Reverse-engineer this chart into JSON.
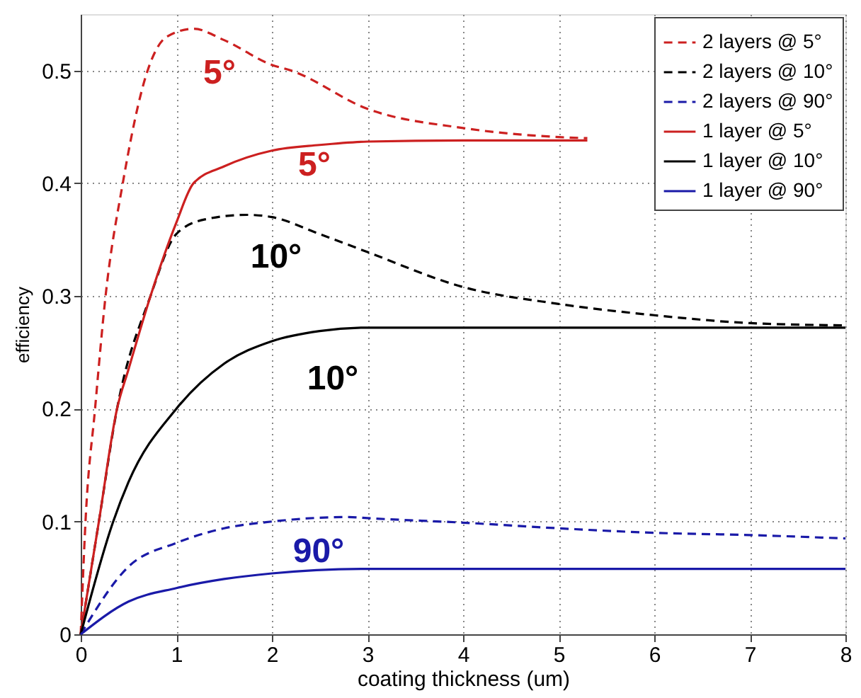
{
  "chart_data": {
    "type": "line",
    "xlabel": "coating thickness (um)",
    "ylabel": "efficiency",
    "xlim": [
      0,
      8
    ],
    "xticks": [
      0,
      1,
      2,
      3,
      4,
      5,
      6,
      7,
      8
    ],
    "ylim": [
      0,
      0.55
    ],
    "yticks": [
      0,
      0.1,
      0.2,
      0.3,
      0.4,
      0.5
    ],
    "grid": true,
    "legend": "top right",
    "marker": "none",
    "series": [
      {
        "name": "2 layers @ 5°",
        "color": "#cc2020",
        "line_style": "dashed",
        "x": [
          0,
          0.05,
          0.15,
          0.26,
          0.44,
          0.7,
          0.9,
          1.18,
          1.5,
          2,
          2.2,
          3,
          4,
          5,
          5.3
        ],
        "values": [
          0,
          0.1,
          0.2,
          0.3,
          0.4,
          0.5,
          0.53,
          0.537,
          0.527,
          0.505,
          0.5,
          0.466,
          0.449,
          0.441,
          0.44
        ]
      },
      {
        "name": "2 layers @ 10°",
        "color": "#000000",
        "line_style": "dashed",
        "x": [
          0,
          0.19,
          0.38,
          0.73,
          1,
          1.3,
          1.74,
          2,
          2.5,
          3,
          4,
          5,
          6,
          7,
          8
        ],
        "values": [
          0,
          0.1,
          0.2,
          0.3,
          0.355,
          0.368,
          0.372,
          0.37,
          0.355,
          0.339,
          0.308,
          0.293,
          0.283,
          0.276,
          0.274
        ]
      },
      {
        "name": "2 layers @ 90°",
        "color": "#1a1aa8",
        "line_style": "dashed",
        "x": [
          0,
          0.5,
          1,
          1.5,
          2,
          2.8,
          3,
          4,
          5,
          6,
          7,
          8
        ],
        "values": [
          0,
          0.06,
          0.081,
          0.094,
          0.1,
          0.104,
          0.103,
          0.099,
          0.094,
          0.09,
          0.088,
          0.085
        ]
      },
      {
        "name": "1 layer @ 5°",
        "color": "#cc2020",
        "line_style": "solid",
        "x": [
          0,
          0.19,
          0.38,
          0.5,
          0.73,
          1,
          1.18,
          1.5,
          2,
          2.5,
          3,
          4,
          5,
          5.3
        ],
        "values": [
          0,
          0.1,
          0.2,
          0.235,
          0.3,
          0.365,
          0.4,
          0.415,
          0.429,
          0.434,
          0.437,
          0.438,
          0.438,
          0.438
        ]
      },
      {
        "name": "1 layer @ 10°",
        "color": "#000000",
        "line_style": "solid",
        "x": [
          0,
          0.34,
          0.5,
          1,
          1.5,
          2,
          2.5,
          3,
          4,
          8
        ],
        "values": [
          0,
          0.1,
          0.135,
          0.2,
          0.24,
          0.26,
          0.269,
          0.272,
          0.272,
          0.272
        ]
      },
      {
        "name": "1 layer @ 90°",
        "color": "#1a1aa8",
        "line_style": "solid",
        "x": [
          0,
          0.5,
          1,
          1.5,
          2,
          3,
          4,
          8
        ],
        "values": [
          0,
          0.029,
          0.041,
          0.049,
          0.054,
          0.058,
          0.058,
          0.058
        ]
      }
    ],
    "annotations": [
      "5°",
      "5°",
      "10°",
      "10°",
      "90°"
    ]
  }
}
